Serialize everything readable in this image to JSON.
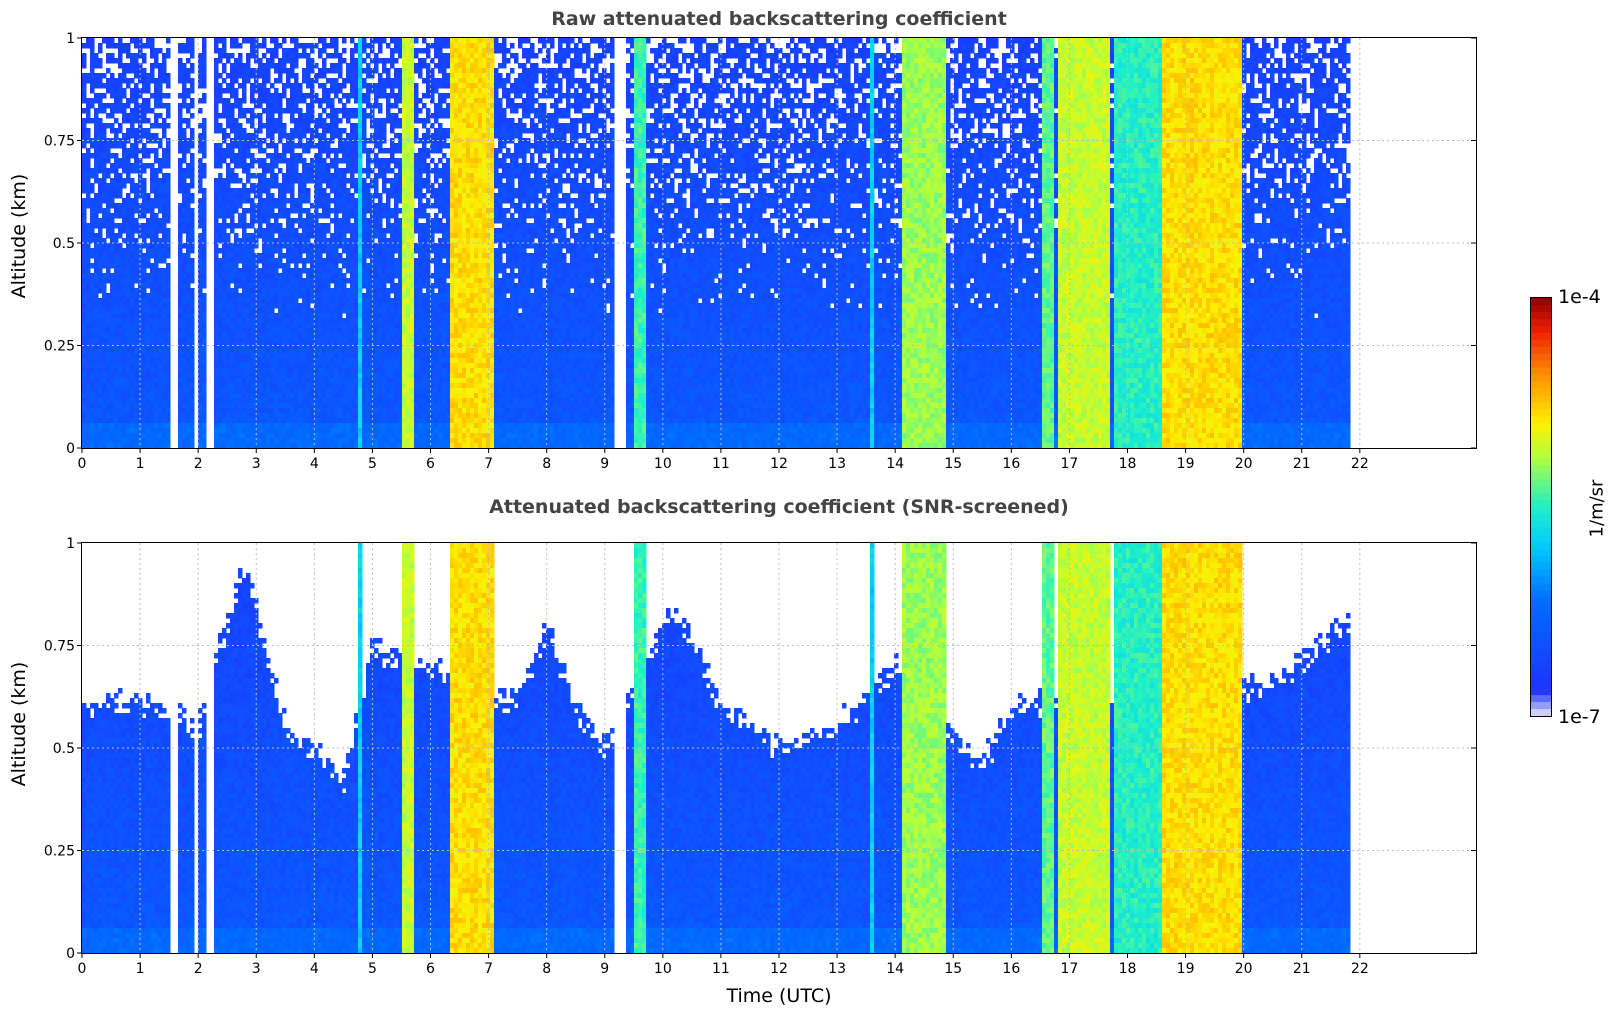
{
  "chart_data": [
    {
      "type": "heatmap",
      "title": "Raw attenuated backscattering coefficient",
      "xlabel": "",
      "ylabel": "Altitude (km)",
      "xlim": [
        0,
        24
      ],
      "ylim": [
        0,
        1
      ],
      "x_ticks": [
        "0",
        "1",
        "2",
        "3",
        "4",
        "5",
        "6",
        "7",
        "8",
        "9",
        "10",
        "11",
        "12",
        "13",
        "14",
        "15",
        "16",
        "17",
        "18",
        "19",
        "20",
        "21",
        "22"
      ],
      "y_ticks": [
        "0",
        "0.25",
        "0.5",
        "0.75",
        "1"
      ],
      "grid": true,
      "data_end_time": 21.8,
      "gaps": [
        [
          1.53,
          1.68
        ],
        [
          1.95,
          2.02
        ],
        [
          2.12,
          2.25
        ],
        [
          9.18,
          9.35
        ]
      ],
      "bands": [
        {
          "x": [
            4.72,
            4.85
          ],
          "level": "cyan"
        },
        {
          "x": [
            5.5,
            5.72
          ],
          "level": "yellow-green"
        },
        {
          "x": [
            6.35,
            7.1
          ],
          "level": "yellow-orange"
        },
        {
          "x": [
            9.5,
            9.72
          ],
          "level": "cyan-green"
        },
        {
          "x": [
            13.55,
            13.65
          ],
          "level": "cyan"
        },
        {
          "x": [
            14.15,
            14.85
          ],
          "level": "green-yellow"
        },
        {
          "x": [
            16.55,
            16.75
          ],
          "level": "green"
        },
        {
          "x": [
            16.8,
            17.7
          ],
          "level": "yellow-green"
        },
        {
          "x": [
            17.8,
            18.6
          ],
          "level": "green-cyan"
        },
        {
          "x": [
            18.6,
            19.95
          ],
          "level": "yellow-orange"
        }
      ]
    },
    {
      "type": "heatmap",
      "title": "Attenuated backscattering coefficient (SNR-screened)",
      "xlabel": "Time (UTC)",
      "ylabel": "Altitude (km)",
      "xlim": [
        0,
        24
      ],
      "ylim": [
        0,
        1
      ],
      "x_ticks": [
        "0",
        "1",
        "2",
        "3",
        "4",
        "5",
        "6",
        "7",
        "8",
        "9",
        "10",
        "11",
        "12",
        "13",
        "14",
        "15",
        "16",
        "17",
        "18",
        "19",
        "20",
        "21",
        "22"
      ],
      "y_ticks": [
        "0",
        "0.25",
        "0.5",
        "0.75",
        "1"
      ],
      "grid": true,
      "data_end_time": 21.8,
      "signal_top_km": [
        {
          "t": 0.0,
          "h": 0.6
        },
        {
          "t": 1.0,
          "h": 0.62
        },
        {
          "t": 2.0,
          "h": 0.55
        },
        {
          "t": 2.8,
          "h": 0.95
        },
        {
          "t": 3.5,
          "h": 0.55
        },
        {
          "t": 4.5,
          "h": 0.42
        },
        {
          "t": 5.0,
          "h": 0.75
        },
        {
          "t": 7.5,
          "h": 0.6
        },
        {
          "t": 8.0,
          "h": 0.8
        },
        {
          "t": 8.5,
          "h": 0.6
        },
        {
          "t": 9.0,
          "h": 0.5
        },
        {
          "t": 10.2,
          "h": 0.85
        },
        {
          "t": 11.0,
          "h": 0.6
        },
        {
          "t": 12.0,
          "h": 0.5
        },
        {
          "t": 13.0,
          "h": 0.55
        },
        {
          "t": 14.0,
          "h": 0.7
        },
        {
          "t": 15.5,
          "h": 0.45
        },
        {
          "t": 16.0,
          "h": 0.6
        },
        {
          "t": 20.5,
          "h": 0.65
        },
        {
          "t": 21.8,
          "h": 0.8
        }
      ]
    }
  ],
  "colorbar": {
    "max_label": "1e-4",
    "min_label": "1e-7",
    "unit_label": "1/m/sr",
    "scale": "log"
  }
}
